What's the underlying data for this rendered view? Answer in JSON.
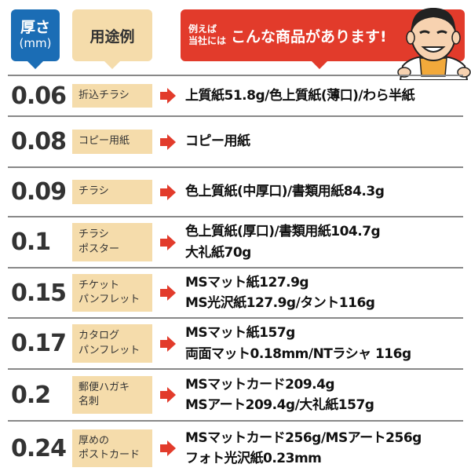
{
  "header": {
    "thickness_label": "厚さ",
    "thickness_unit": "(mm)",
    "use_label": "用途例",
    "example_small_1": "例えば",
    "example_small_2": "当社には",
    "example_large": "こんな商品があります!"
  },
  "colors": {
    "thickness_header": "#1b6db5",
    "use_bg": "#f5dcab",
    "accent_red": "#e23b2b"
  },
  "rows": [
    {
      "thickness": "0.06",
      "use": "折込チラシ",
      "examples": [
        "上質紙51.8g/色上質紙(薄口)/わら半紙"
      ]
    },
    {
      "thickness": "0.08",
      "use": "コピー用紙",
      "examples": [
        "コピー用紙"
      ]
    },
    {
      "thickness": "0.09",
      "use": "チラシ",
      "examples": [
        "色上質紙(中厚口)/書類用紙84.3g"
      ]
    },
    {
      "thickness": "0.1",
      "use": "チラシ\nポスター",
      "examples": [
        "色上質紙(厚口)/書類用紙104.7g",
        "大礼紙70g"
      ]
    },
    {
      "thickness": "0.15",
      "use": "チケット\nパンフレット",
      "examples": [
        "MSマット紙127.9g",
        "MS光沢紙127.9g/タント116g"
      ]
    },
    {
      "thickness": "0.17",
      "use": "カタログ\nパンフレット",
      "examples": [
        "MSマット紙157g",
        "両面マット0.18mm/NTラシャ 116g"
      ]
    },
    {
      "thickness": "0.2",
      "use": "郵便ハガキ\n名刺",
      "examples": [
        "MSマットカード209.4g",
        "MSアート209.4g/大礼紙157g"
      ]
    },
    {
      "thickness": "0.24",
      "use": "厚めの\nポストカード",
      "examples": [
        "MSマットカード256g/MSアート256g",
        "フォト光沢紙0.23mm"
      ]
    }
  ]
}
